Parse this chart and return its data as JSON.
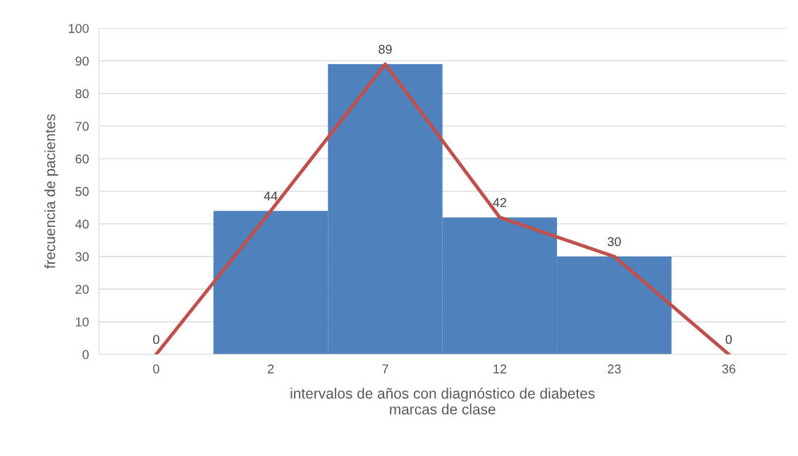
{
  "chart_data": {
    "type": "bar",
    "xlabel": "intervalos de años con diagnóstico de diabetes\nmarcas de clase",
    "ylabel": "frecuencia de pacientes",
    "categories": [
      "0",
      "2",
      "7",
      "12",
      "23",
      "36"
    ],
    "series": [
      {
        "color": "#4f81bd",
        "values": [
          0,
          44,
          89,
          42,
          30,
          0
        ]
      },
      {
        "type": "line",
        "color": "#c0504d",
        "values": [
          0,
          44,
          89,
          42,
          30,
          0
        ],
        "value_labels": [
          "0",
          "44",
          "89",
          "42",
          "30",
          "0"
        ]
      }
    ],
    "ylim": [
      0,
      100
    ],
    "yticks": [
      0,
      10,
      20,
      30,
      40,
      50,
      60,
      70,
      80,
      90,
      100
    ],
    "grid": "y"
  }
}
